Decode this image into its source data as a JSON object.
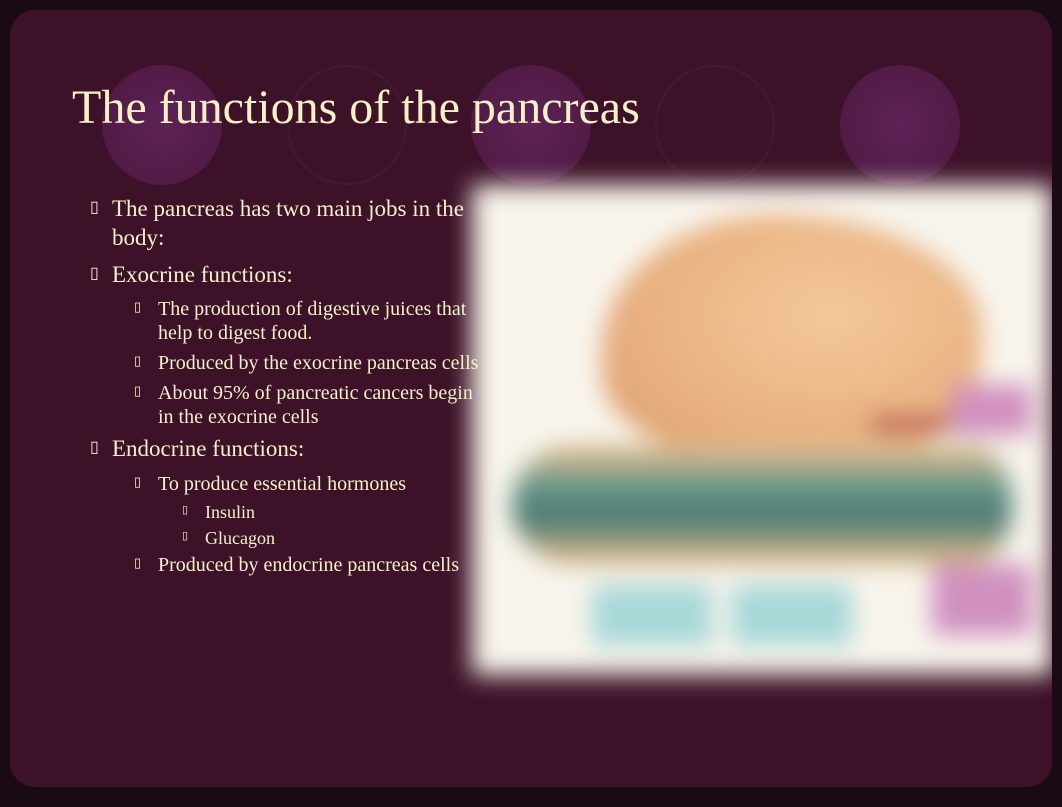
{
  "slide": {
    "title": "The functions of the pancreas",
    "background_color": "#3d1228",
    "text_color": "#f5f0c8",
    "title_fontsize": 48,
    "decorative_circles": {
      "filled_color": "#6b2a6b",
      "count_filled": 3,
      "count_outline": 2
    },
    "bullets": [
      {
        "level": 1,
        "text": "The pancreas has two main jobs in the body:"
      },
      {
        "level": 1,
        "text": "Exocrine functions:"
      },
      {
        "level": 2,
        "text": "The production of digestive juices that help to digest food."
      },
      {
        "level": 2,
        "text": "Produced by the exocrine pancreas cells"
      },
      {
        "level": 2,
        "text": "About 95% of pancreatic cancers begin in the exocrine cells"
      },
      {
        "level": 1,
        "text": "Endocrine functions:"
      },
      {
        "level": 2,
        "text": "To produce essential hormones"
      },
      {
        "level": 3,
        "text": "Insulin"
      },
      {
        "level": 3,
        "text": "Glucagon"
      },
      {
        "level": 2,
        "text": "Produced by endocrine pancreas cells"
      }
    ],
    "diagram": {
      "type": "anatomical-illustration",
      "description": "pancreas-stomach-anatomy",
      "background_color": "#f8f5ed",
      "blurred": true,
      "stomach_color": "#f4c89a",
      "pancreas_colors": [
        "#e8c090",
        "#5a9088"
      ],
      "duct_color": "#7ab070",
      "label_cyan": "#a8d8d8",
      "label_magenta": "#d090c0",
      "vessel_color": "#902030"
    }
  }
}
